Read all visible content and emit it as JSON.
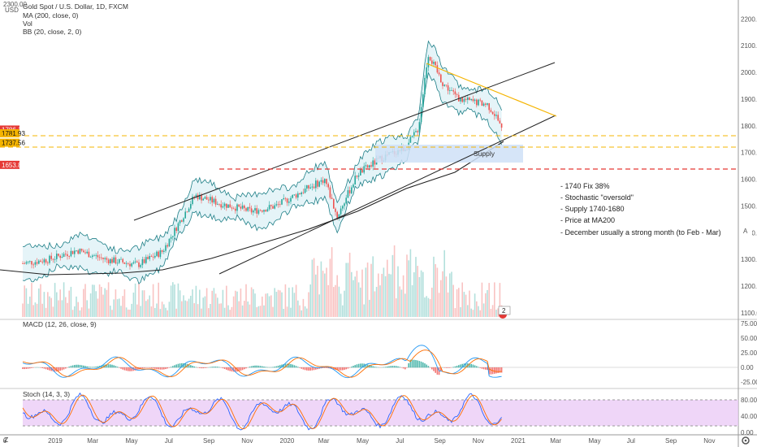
{
  "header": {
    "symbol_title": "Gold Spot / U.S. Dollar, 1D, FXCM",
    "indicators": [
      "MA (200, close, 0)",
      "Vol",
      "BB (20, close, 2, 0)"
    ],
    "currency": "USD",
    "top_price": "2300.00"
  },
  "price_axis": {
    "labels": [
      "2200.00",
      "2100.00",
      "2000.00",
      "1900.00",
      "1800.00",
      "1700.00",
      "1600.00",
      "1500.00",
      "1400.00",
      "1300.00",
      "1200.00",
      "1100.00"
    ],
    "values": [
      2200,
      2100,
      2000,
      1900,
      1800,
      1700,
      1600,
      1500,
      1400,
      1300,
      1200,
      1100
    ],
    "tags": [
      {
        "text": "1786.13",
        "color": "#e53935",
        "value": 1786
      },
      {
        "text": "1781.93",
        "color": "#f5b400",
        "value": 1772
      },
      {
        "text": "1737.56",
        "color": "#f5b400",
        "value": 1737
      },
      {
        "text": "1653.82",
        "color": "#e53935",
        "value": 1654
      }
    ],
    "a_button": "A"
  },
  "time_axis": {
    "labels": [
      "6",
      "2019",
      "Mar",
      "May",
      "Jul",
      "Sep",
      "Nov",
      "2020",
      "Mar",
      "May",
      "Jul",
      "Sep",
      "Nov",
      "2021",
      "Mar",
      "May",
      "Jul",
      "Sep",
      "Nov"
    ],
    "positions": [
      0.004,
      0.065,
      0.118,
      0.17,
      0.223,
      0.275,
      0.327,
      0.379,
      0.431,
      0.483,
      0.536,
      0.588,
      0.64,
      0.692,
      0.745,
      0.797,
      0.849,
      0.901,
      0.953
    ]
  },
  "annotations": {
    "supply_label": "Supply",
    "notes": [
      "- 1740 Fix 38%",
      "- Stochastic \"oversold\"",
      "- Supply 1740-1680",
      "- Price at MA200",
      "- December usually a strong month (to Feb - Mar)"
    ],
    "event_badge": "2",
    "event_badge_color": "#e53935"
  },
  "macd": {
    "legend": "MACD (12, 26, close, 9)",
    "axis_labels": [
      "75.00",
      "50.00",
      "25.00",
      "0.00",
      "-25.00"
    ],
    "axis_values": [
      75,
      50,
      25,
      0,
      -25
    ]
  },
  "stoch": {
    "legend": "Stoch (14, 3, 3)",
    "axis_labels": [
      "80.00",
      "40.00",
      "0.00"
    ],
    "axis_values": [
      80,
      40,
      0
    ],
    "band_color": "#e9c8f5"
  },
  "footer": {
    "z_button": "Z",
    "gear_icon": "gear-icon"
  },
  "colors": {
    "candle_up": "#26a69a",
    "candle_down": "#ef5350",
    "bb_fill": "#dff1f6",
    "bb_line": "#1e7f87",
    "ma_line": "#222222",
    "channel": "#222222",
    "trend_yellow": "#f5b400",
    "level_red": "#e53935",
    "level_yellow": "#f5b400",
    "macd_line": "#2196f3",
    "signal_line": "#ff6d00",
    "stoch_k": "#2962ff",
    "stoch_d": "#ff6d00"
  }
}
